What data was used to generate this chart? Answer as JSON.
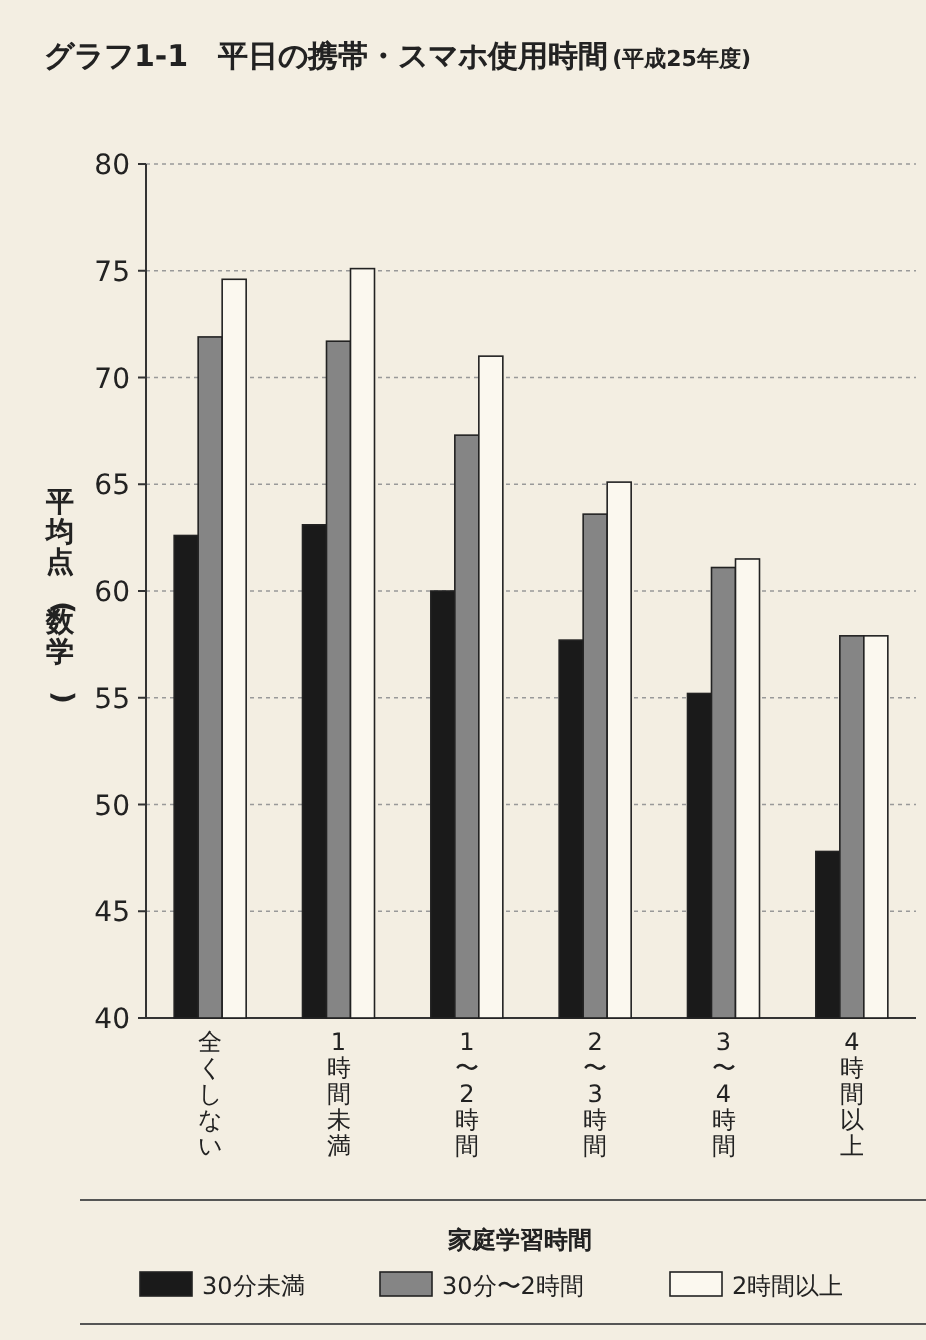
{
  "chart_data": {
    "type": "bar",
    "title": "グラフ1-1　平日の携帯・スマホ使用時間",
    "subtitle": "(平成25年度)",
    "ylabel": "平均点(数学)",
    "legend_title": "家庭学習時間",
    "categories": [
      "全くしない",
      "1時間未満",
      "1〜2時間",
      "2〜3時間",
      "3〜4時間",
      "4時間以上"
    ],
    "series": [
      {
        "name": "30分未満",
        "color": "#1a1a1a",
        "values": [
          62.6,
          63.1,
          60.0,
          57.7,
          55.2,
          47.8
        ]
      },
      {
        "name": "30分〜2時間",
        "color": "#858585",
        "values": [
          71.9,
          71.7,
          67.3,
          63.6,
          61.1,
          57.9
        ]
      },
      {
        "name": "2時間以上",
        "color": "#fbf8ef",
        "values": [
          74.6,
          75.1,
          71.0,
          65.1,
          61.5,
          57.9
        ]
      }
    ],
    "ylim": [
      40,
      80
    ],
    "yticks": [
      40,
      45,
      50,
      55,
      60,
      65,
      70,
      75,
      80
    ],
    "grid": "y",
    "legend": "bottom"
  }
}
